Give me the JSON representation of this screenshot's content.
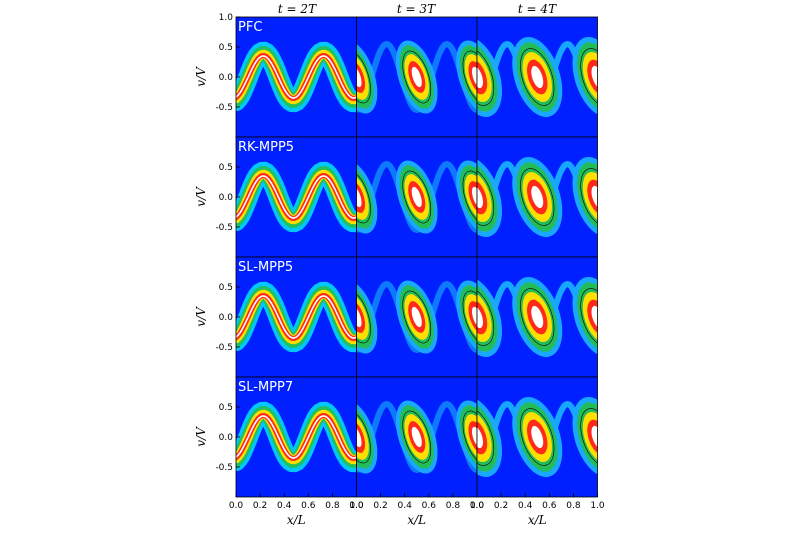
{
  "chart_data": {
    "type": "heatmap",
    "columns": [
      {
        "label": "t = 2T",
        "var": "t",
        "value": "2T"
      },
      {
        "label": "t = 3T",
        "var": "t",
        "value": "3T"
      },
      {
        "label": "t = 4T",
        "var": "t",
        "value": "4T"
      }
    ],
    "rows": [
      {
        "label": "PFC"
      },
      {
        "label": "RK-MPP5"
      },
      {
        "label": "SL-MPP5"
      },
      {
        "label": "SL-MPP7"
      }
    ],
    "xlabel": "x/L",
    "ylabel": "v/V",
    "xlim": [
      0.0,
      1.0
    ],
    "ylim": [
      -1.0,
      1.0
    ],
    "x_ticks": [
      "0.0",
      "0.2",
      "0.4",
      "0.6",
      "0.8",
      "1.0"
    ],
    "y_ticks": [
      "1.0",
      "0.5",
      "0.0",
      "-0.5"
    ],
    "y_tick_values": [
      1.0,
      0.5,
      0.0,
      -0.5
    ],
    "x_tick_values": [
      0.0,
      0.2,
      0.4,
      0.6,
      0.8,
      1.0
    ],
    "vortices_per_panel": 2,
    "colormap": [
      "#0000e0",
      "#00b8ff",
      "#20c060",
      "#ffe000",
      "#ff2000",
      "#ffffff"
    ],
    "background_color": "#0020ff"
  }
}
